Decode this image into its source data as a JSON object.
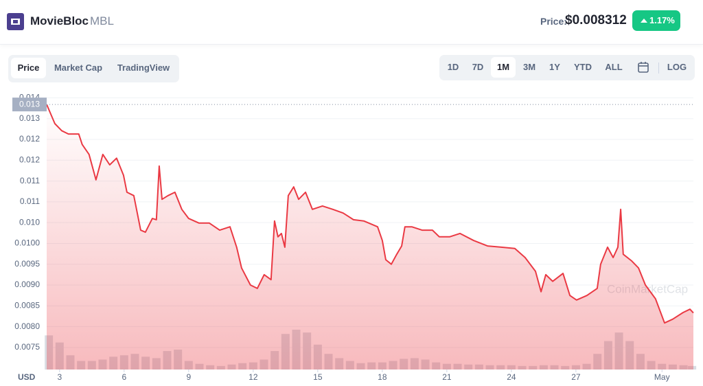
{
  "header": {
    "name": "MovieBloc",
    "symbol": "MBL",
    "price_label": "Price:",
    "price": "$0.008312",
    "change": "1.17%"
  },
  "tabs": [
    "Price",
    "Market Cap",
    "TradingView"
  ],
  "ranges": [
    "1D",
    "7D",
    "1M",
    "3M",
    "1Y",
    "YTD",
    "ALL"
  ],
  "scale_button": "LOG",
  "chart_data": {
    "type": "line",
    "y_axis_label": "USD",
    "watermark": "CoinMarketCap",
    "color": "#ea3943",
    "grid": true,
    "xlim": [
      2.4,
      32.46
    ],
    "ylim": [
      0.00697,
      0.01354
    ],
    "xticks": [
      3,
      6,
      9,
      12,
      15,
      18,
      21,
      24,
      27,
      {
        "value": 31,
        "label": "May"
      }
    ],
    "yticks": [
      0.0075,
      {
        "value": 0.008,
        "label": "0.0080"
      },
      0.0085,
      {
        "value": 0.009,
        "label": "0.0090"
      },
      0.0095,
      {
        "value": 0.01,
        "label": "0.0100"
      },
      {
        "value": 0.0105,
        "label": "0.010"
      },
      {
        "value": 0.011,
        "label": "0.011"
      },
      {
        "value": 0.0115,
        "label": "0.011"
      },
      {
        "value": 0.012,
        "label": "0.012"
      },
      {
        "value": 0.0125,
        "label": "0.012"
      },
      {
        "value": 0.013,
        "label": "0.013"
      },
      {
        "value": 0.0135,
        "label": "0.014"
      }
    ],
    "reference": {
      "value": 0.01334,
      "label": "0.013"
    },
    "x": [
      2.4,
      2.78,
      3.1,
      3.41,
      3.89,
      4.05,
      4.37,
      4.69,
      5.01,
      5.33,
      5.65,
      5.97,
      6.13,
      6.45,
      6.77,
      6.99,
      7.31,
      7.5,
      7.63,
      7.76,
      8.04,
      8.36,
      8.68,
      9.0,
      9.48,
      9.96,
      10.44,
      10.92,
      11.23,
      11.46,
      11.87,
      12.19,
      12.51,
      12.83,
      12.99,
      13.15,
      13.31,
      13.47,
      13.63,
      13.88,
      14.11,
      14.43,
      14.75,
      15.22,
      15.7,
      16.18,
      16.66,
      17.14,
      17.78,
      18.0,
      18.16,
      18.42,
      18.67,
      18.9,
      19.05,
      19.37,
      19.85,
      20.33,
      20.65,
      21.13,
      21.61,
      22.25,
      22.89,
      23.53,
      24.16,
      24.64,
      25.12,
      25.38,
      25.6,
      25.92,
      26.4,
      26.72,
      27.03,
      27.51,
      27.99,
      28.15,
      28.47,
      28.73,
      28.95,
      29.08,
      29.2,
      29.59,
      29.91,
      30.23,
      30.7,
      31.12,
      31.5,
      31.98,
      32.3,
      32.46
    ],
    "values": [
      0.01334,
      0.01288,
      0.01271,
      0.01263,
      0.01263,
      0.01238,
      0.01214,
      0.01153,
      0.01214,
      0.01189,
      0.01205,
      0.01164,
      0.01123,
      0.01115,
      0.01032,
      0.01027,
      0.0106,
      0.01057,
      0.01186,
      0.01106,
      0.01115,
      0.01123,
      0.01082,
      0.0106,
      0.01049,
      0.01049,
      0.01032,
      0.0104,
      0.00991,
      0.00941,
      0.009,
      0.00892,
      0.00925,
      0.00913,
      0.01054,
      0.01016,
      0.01024,
      0.00991,
      0.01115,
      0.01136,
      0.01106,
      0.01123,
      0.01082,
      0.0109,
      0.01082,
      0.01073,
      0.01057,
      0.01054,
      0.0104,
      0.01007,
      0.00961,
      0.0095,
      0.00974,
      0.00994,
      0.0104,
      0.0104,
      0.01032,
      0.01032,
      0.01016,
      0.01016,
      0.01024,
      0.01007,
      0.00994,
      0.00991,
      0.00988,
      0.00966,
      0.00933,
      0.00884,
      0.00925,
      0.00909,
      0.00928,
      0.00875,
      0.00864,
      0.00875,
      0.00892,
      0.0095,
      0.00991,
      0.00966,
      0.00991,
      0.01082,
      0.00974,
      0.00958,
      0.00941,
      0.009,
      0.00867,
      0.00809,
      0.00818,
      0.00834,
      0.00842,
      0.00833
    ],
    "volume": {
      "color": "#d9dde3",
      "x": [
        2.5,
        3,
        3.5,
        4,
        4.5,
        5,
        5.5,
        6,
        6.5,
        7,
        7.5,
        8,
        8.5,
        9,
        9.5,
        10,
        10.5,
        11,
        11.5,
        12,
        12.5,
        13,
        13.5,
        14,
        14.5,
        15,
        15.5,
        16,
        16.5,
        17,
        17.5,
        18,
        18.5,
        19,
        19.5,
        20,
        20.5,
        21,
        21.5,
        22,
        22.5,
        23,
        23.5,
        24,
        24.5,
        25,
        25.5,
        26,
        26.5,
        27,
        27.5,
        28,
        28.5,
        29,
        29.5,
        30,
        30.5,
        31,
        31.5,
        32,
        32.4
      ],
      "values": [
        48,
        38,
        20,
        12,
        12,
        14,
        18,
        20,
        22,
        18,
        16,
        26,
        28,
        12,
        8,
        6,
        5,
        7,
        9,
        10,
        14,
        26,
        50,
        56,
        52,
        35,
        22,
        16,
        12,
        9,
        10,
        10,
        12,
        15,
        16,
        14,
        10,
        8,
        8,
        7,
        7,
        6,
        6,
        6,
        5,
        5,
        6,
        6,
        5,
        6,
        8,
        22,
        40,
        52,
        40,
        22,
        12,
        8,
        7,
        6,
        5
      ]
    }
  }
}
